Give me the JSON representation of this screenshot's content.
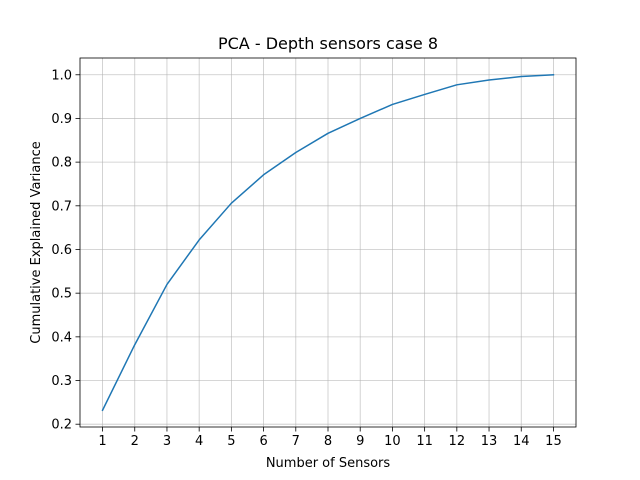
{
  "chart_data": {
    "type": "line",
    "title": "PCA - Depth sensors case 8",
    "xlabel": "Number of Sensors",
    "ylabel": "Cumulative Explained Variance",
    "x": [
      1,
      2,
      3,
      4,
      5,
      6,
      7,
      8,
      9,
      10,
      11,
      12,
      13,
      14,
      15
    ],
    "series": [
      {
        "values": [
          0.232,
          0.382,
          0.52,
          0.622,
          0.706,
          0.771,
          0.822,
          0.866,
          0.9,
          0.932,
          0.955,
          0.977,
          0.988,
          0.996,
          1.0
        ],
        "color": "#1f77b4"
      }
    ],
    "xticks": [
      "1",
      "2",
      "3",
      "4",
      "5",
      "6",
      "7",
      "8",
      "9",
      "10",
      "11",
      "12",
      "13",
      "14",
      "15"
    ],
    "yticks": [
      "0.2",
      "0.3",
      "0.4",
      "0.5",
      "0.6",
      "0.7",
      "0.8",
      "0.9",
      "1.0"
    ],
    "xlim": [
      0.3,
      15.7
    ],
    "ylim": [
      0.1936,
      1.0384
    ],
    "grid": true,
    "legend": "none"
  }
}
